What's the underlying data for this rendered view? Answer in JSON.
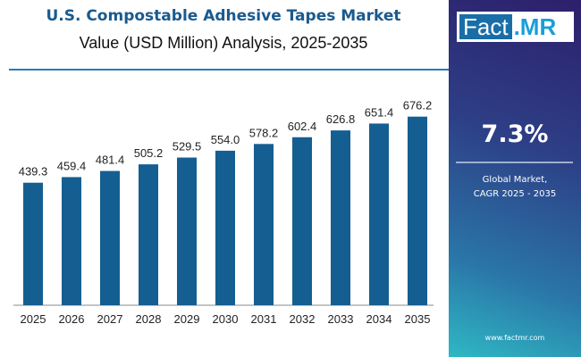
{
  "chart_data": {
    "type": "bar",
    "title": "U.S. Compostable Adhesive Tapes Market",
    "subtitle": "Value (USD Million) Analysis, 2025-2035",
    "categories": [
      "2025",
      "2026",
      "2027",
      "2028",
      "2029",
      "2030",
      "2031",
      "2032",
      "2033",
      "2034",
      "2035"
    ],
    "values": [
      439.3,
      459.4,
      481.4,
      505.2,
      529.5,
      554.0,
      578.2,
      602.4,
      626.8,
      651.4,
      676.2
    ],
    "labels": [
      "439.3",
      "459.4",
      "481.4",
      "505.2",
      "529.5",
      "554.0",
      "578.2",
      "602.4",
      "626.8",
      "651.4",
      "676.2"
    ],
    "ylim": [
      0,
      800
    ],
    "grid": false,
    "bar_color": "#155e91"
  },
  "panel": {
    "logo": {
      "left": "Fact",
      "right": ".MR"
    },
    "cagr": "7.3%",
    "label_line1": "Global Market,",
    "label_line2": "CAGR 2025 - 2035",
    "url": "www.factmr.com"
  }
}
